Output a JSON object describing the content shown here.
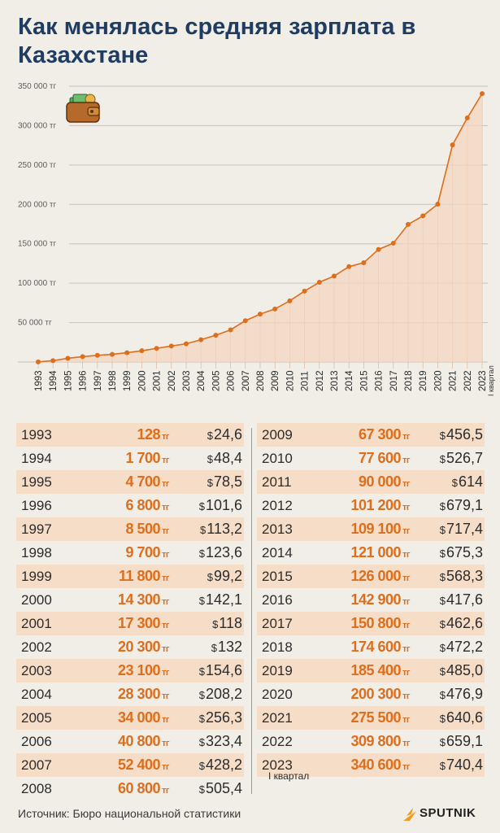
{
  "title": "Как менялась средняя зарплата в Казахстане",
  "source": "Источник: Бюро национальной статистики",
  "brand": "SPUTNIK",
  "quarter_note": "I квартал",
  "colors": {
    "accent": "#dd6e1b",
    "fill": "#f3d6bf",
    "title": "#1f3c63",
    "row_shade": "#f6ddc8"
  },
  "icons": [
    "wallet-icon",
    "sputnik-logo-icon"
  ],
  "chart_data": {
    "type": "area",
    "x": [
      "1993",
      "1994",
      "1995",
      "1996",
      "1997",
      "1998",
      "1999",
      "2000",
      "2001",
      "2002",
      "2003",
      "2004",
      "2005",
      "2006",
      "2007",
      "2008",
      "2009",
      "2010",
      "2011",
      "2012",
      "2013",
      "2014",
      "2015",
      "2016",
      "2017",
      "2018",
      "2019",
      "2020",
      "2021",
      "2022",
      "2023"
    ],
    "values": [
      128,
      1700,
      4700,
      6800,
      8500,
      9700,
      11800,
      14300,
      17300,
      20300,
      23100,
      28300,
      34000,
      40800,
      52400,
      60800,
      67300,
      77600,
      90000,
      101200,
      109100,
      121000,
      126000,
      142900,
      150800,
      174600,
      185400,
      200300,
      275500,
      309800,
      340600
    ],
    "yticks": [
      "50 000 тг",
      "100 000 тг",
      "150 000 тг",
      "200 000 тг",
      "250 000 тг",
      "300 000 тг",
      "350 000 тг"
    ],
    "ytick_values": [
      50000,
      100000,
      150000,
      200000,
      250000,
      300000,
      350000
    ],
    "ylim": [
      0,
      350000
    ],
    "last_label_note": "I квартал",
    "grid": true
  },
  "table": {
    "currency_tg": "тг",
    "currency_usd": "$",
    "rows": [
      {
        "year": "1993",
        "tg": "128",
        "usd": "24,6"
      },
      {
        "year": "1994",
        "tg": "1 700",
        "usd": "48,4"
      },
      {
        "year": "1995",
        "tg": "4 700",
        "usd": "78,5"
      },
      {
        "year": "1996",
        "tg": "6 800",
        "usd": "101,6"
      },
      {
        "year": "1997",
        "tg": "8 500",
        "usd": "113,2"
      },
      {
        "year": "1998",
        "tg": "9 700",
        "usd": "123,6"
      },
      {
        "year": "1999",
        "tg": "11 800",
        "usd": "99,2"
      },
      {
        "year": "2000",
        "tg": "14 300",
        "usd": "142,1"
      },
      {
        "year": "2001",
        "tg": "17 300",
        "usd": "118"
      },
      {
        "year": "2002",
        "tg": "20 300",
        "usd": "132"
      },
      {
        "year": "2003",
        "tg": "23 100",
        "usd": "154,6"
      },
      {
        "year": "2004",
        "tg": "28 300",
        "usd": "208,2"
      },
      {
        "year": "2005",
        "tg": "34 000",
        "usd": "256,3"
      },
      {
        "year": "2006",
        "tg": "40 800",
        "usd": "323,4"
      },
      {
        "year": "2007",
        "tg": "52 400",
        "usd": "428,2"
      },
      {
        "year": "2008",
        "tg": "60 800",
        "usd": "505,4"
      },
      {
        "year": "2009",
        "tg": "67 300",
        "usd": "456,5"
      },
      {
        "year": "2010",
        "tg": "77 600",
        "usd": "526,7"
      },
      {
        "year": "2011",
        "tg": "90 000",
        "usd": "614"
      },
      {
        "year": "2012",
        "tg": "101 200",
        "usd": "679,1"
      },
      {
        "year": "2013",
        "tg": "109 100",
        "usd": "717,4"
      },
      {
        "year": "2014",
        "tg": "121 000",
        "usd": "675,3"
      },
      {
        "year": "2015",
        "tg": "126 000",
        "usd": "568,3"
      },
      {
        "year": "2016",
        "tg": "142 900",
        "usd": "417,6"
      },
      {
        "year": "2017",
        "tg": "150 800",
        "usd": "462,6"
      },
      {
        "year": "2018",
        "tg": "174 600",
        "usd": "472,2"
      },
      {
        "year": "2019",
        "tg": "185 400",
        "usd": "485,0"
      },
      {
        "year": "2020",
        "tg": "200 300",
        "usd": "476,9"
      },
      {
        "year": "2021",
        "tg": "275 500",
        "usd": "640,6"
      },
      {
        "year": "2022",
        "tg": "309 800",
        "usd": "659,1"
      },
      {
        "year": "2023",
        "tg": "340 600",
        "usd": "740,4"
      }
    ]
  }
}
